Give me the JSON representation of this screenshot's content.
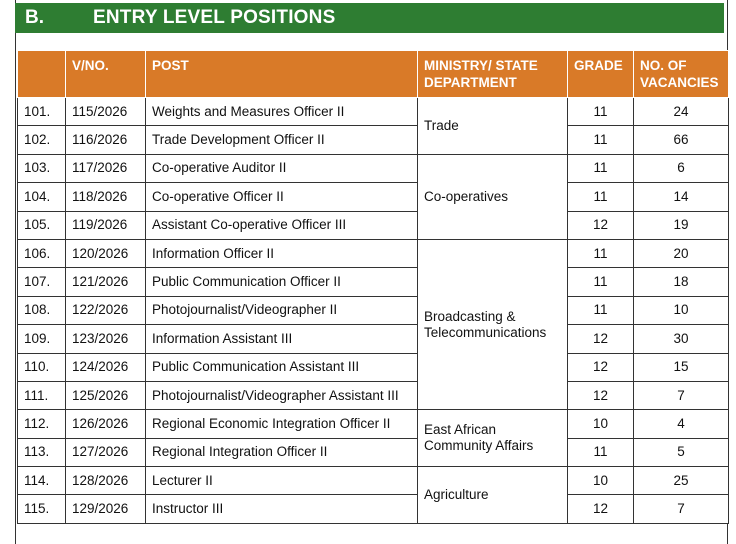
{
  "section": {
    "letter": "B.",
    "title": "ENTRY LEVEL POSITIONS"
  },
  "columns": {
    "no": "",
    "vno": "V/NO.",
    "post": "POST",
    "ministry": "MINISTRY/ STATE DEPARTMENT",
    "grade": "GRADE",
    "vacancies": "NO. OF VACANCIES"
  },
  "rows": [
    {
      "no": "101.",
      "vno": "115/2026",
      "post": "Weights and Measures Officer II",
      "grade": "11",
      "vacancies": "24"
    },
    {
      "no": "102.",
      "vno": "116/2026",
      "post": "Trade Development Officer II",
      "grade": "11",
      "vacancies": "66"
    },
    {
      "no": "103.",
      "vno": "117/2026",
      "post": "Co-operative Auditor II",
      "grade": "11",
      "vacancies": "6"
    },
    {
      "no": "104.",
      "vno": "118/2026",
      "post": "Co-operative Officer II",
      "grade": "11",
      "vacancies": "14"
    },
    {
      "no": "105.",
      "vno": "119/2026",
      "post": "Assistant Co-operative Officer III",
      "grade": "12",
      "vacancies": "19"
    },
    {
      "no": "106.",
      "vno": "120/2026",
      "post": "Information Officer II",
      "grade": "11",
      "vacancies": "20"
    },
    {
      "no": "107.",
      "vno": "121/2026",
      "post": "Public Communication Officer II",
      "grade": "11",
      "vacancies": "18"
    },
    {
      "no": "108.",
      "vno": "122/2026",
      "post": "Photojournalist/Videographer II",
      "grade": "11",
      "vacancies": "10"
    },
    {
      "no": "109.",
      "vno": "123/2026",
      "post": "Information Assistant III",
      "grade": "12",
      "vacancies": "30"
    },
    {
      "no": "110.",
      "vno": "124/2026",
      "post": "Public Communication Assistant III",
      "grade": "12",
      "vacancies": "15"
    },
    {
      "no": "111.",
      "vno": "125/2026",
      "post": "Photojournalist/Videographer Assistant III",
      "grade": "12",
      "vacancies": "7"
    },
    {
      "no": "112.",
      "vno": "126/2026",
      "post": "Regional Economic Integration Officer II",
      "grade": "10",
      "vacancies": "4"
    },
    {
      "no": "113.",
      "vno": "127/2026",
      "post": "Regional Integration Officer II",
      "grade": "11",
      "vacancies": "5"
    },
    {
      "no": "114.",
      "vno": "128/2026",
      "post": "Lecturer II",
      "grade": "10",
      "vacancies": "25"
    },
    {
      "no": "115.",
      "vno": "129/2026",
      "post": "Instructor III",
      "grade": "12",
      "vacancies": "7"
    }
  ],
  "ministries": [
    {
      "name": "Trade",
      "span": 2
    },
    {
      "name": "Co-operatives",
      "span": 3
    },
    {
      "name": "Broadcasting & Telecommunications",
      "span": 6
    },
    {
      "name": "East African Community Affairs",
      "span": 2
    },
    {
      "name": "Agriculture",
      "span": 2
    }
  ]
}
